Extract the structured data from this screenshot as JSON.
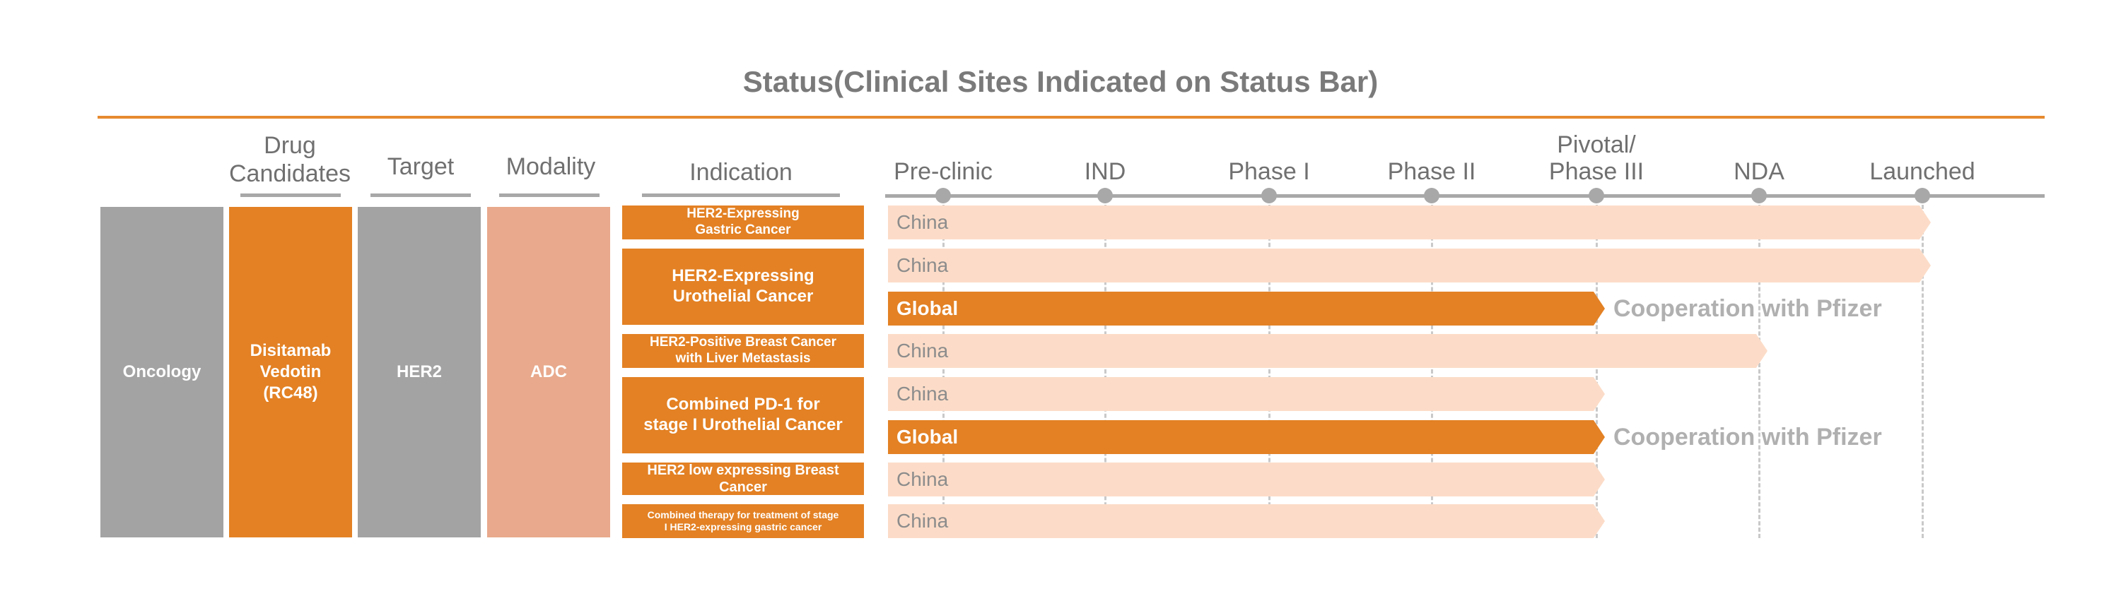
{
  "title": "Status(Clinical Sites Indicated on Status Bar)",
  "columns": {
    "drug_candidates": "Drug\nCandidates",
    "target": "Target",
    "modality": "Modality",
    "indication": "Indication"
  },
  "stages": [
    "Pre-clinic",
    "IND",
    "Phase I",
    "Phase  II",
    "Pivotal/\nPhase III",
    "NDA",
    "Launched"
  ],
  "therapeutic_area": "Oncology",
  "drug": "Disitamab\nVedotin\n(RC48)",
  "target": "HER2",
  "modality": "ADC",
  "indications": [
    "HER2-Expressing\nGastric Cancer",
    "HER2-Expressing\nUrothelial Cancer",
    "HER2-Positive Breast Cancer\nwith Liver Metastasis",
    "Combined PD-1 for\nstage I Urothelial Cancer",
    "HER2 low expressing Breast Cancer",
    "Combined therapy for treatment of stage\nI HER2-expressing gastric cancer"
  ],
  "programs": [
    {
      "site": "China",
      "stage_index": 6,
      "kind": "light",
      "note": ""
    },
    {
      "site": "China",
      "stage_index": 6,
      "kind": "light",
      "note": ""
    },
    {
      "site": "Global",
      "stage_index": 4,
      "kind": "dark",
      "note": "Cooperation with Pfizer"
    },
    {
      "site": "China",
      "stage_index": 5,
      "kind": "light",
      "note": ""
    },
    {
      "site": "China",
      "stage_index": 4,
      "kind": "light",
      "note": ""
    },
    {
      "site": "Global",
      "stage_index": 4,
      "kind": "dark",
      "note": "Cooperation with Pfizer"
    },
    {
      "site": "China",
      "stage_index": 4,
      "kind": "light",
      "note": ""
    },
    {
      "site": "China",
      "stage_index": 4,
      "kind": "light",
      "note": ""
    }
  ],
  "colors": {
    "accent": "#e38124",
    "light_bar": "#fcdcc8",
    "grey": "#a3a3a3",
    "modality": "#e8a98c"
  }
}
